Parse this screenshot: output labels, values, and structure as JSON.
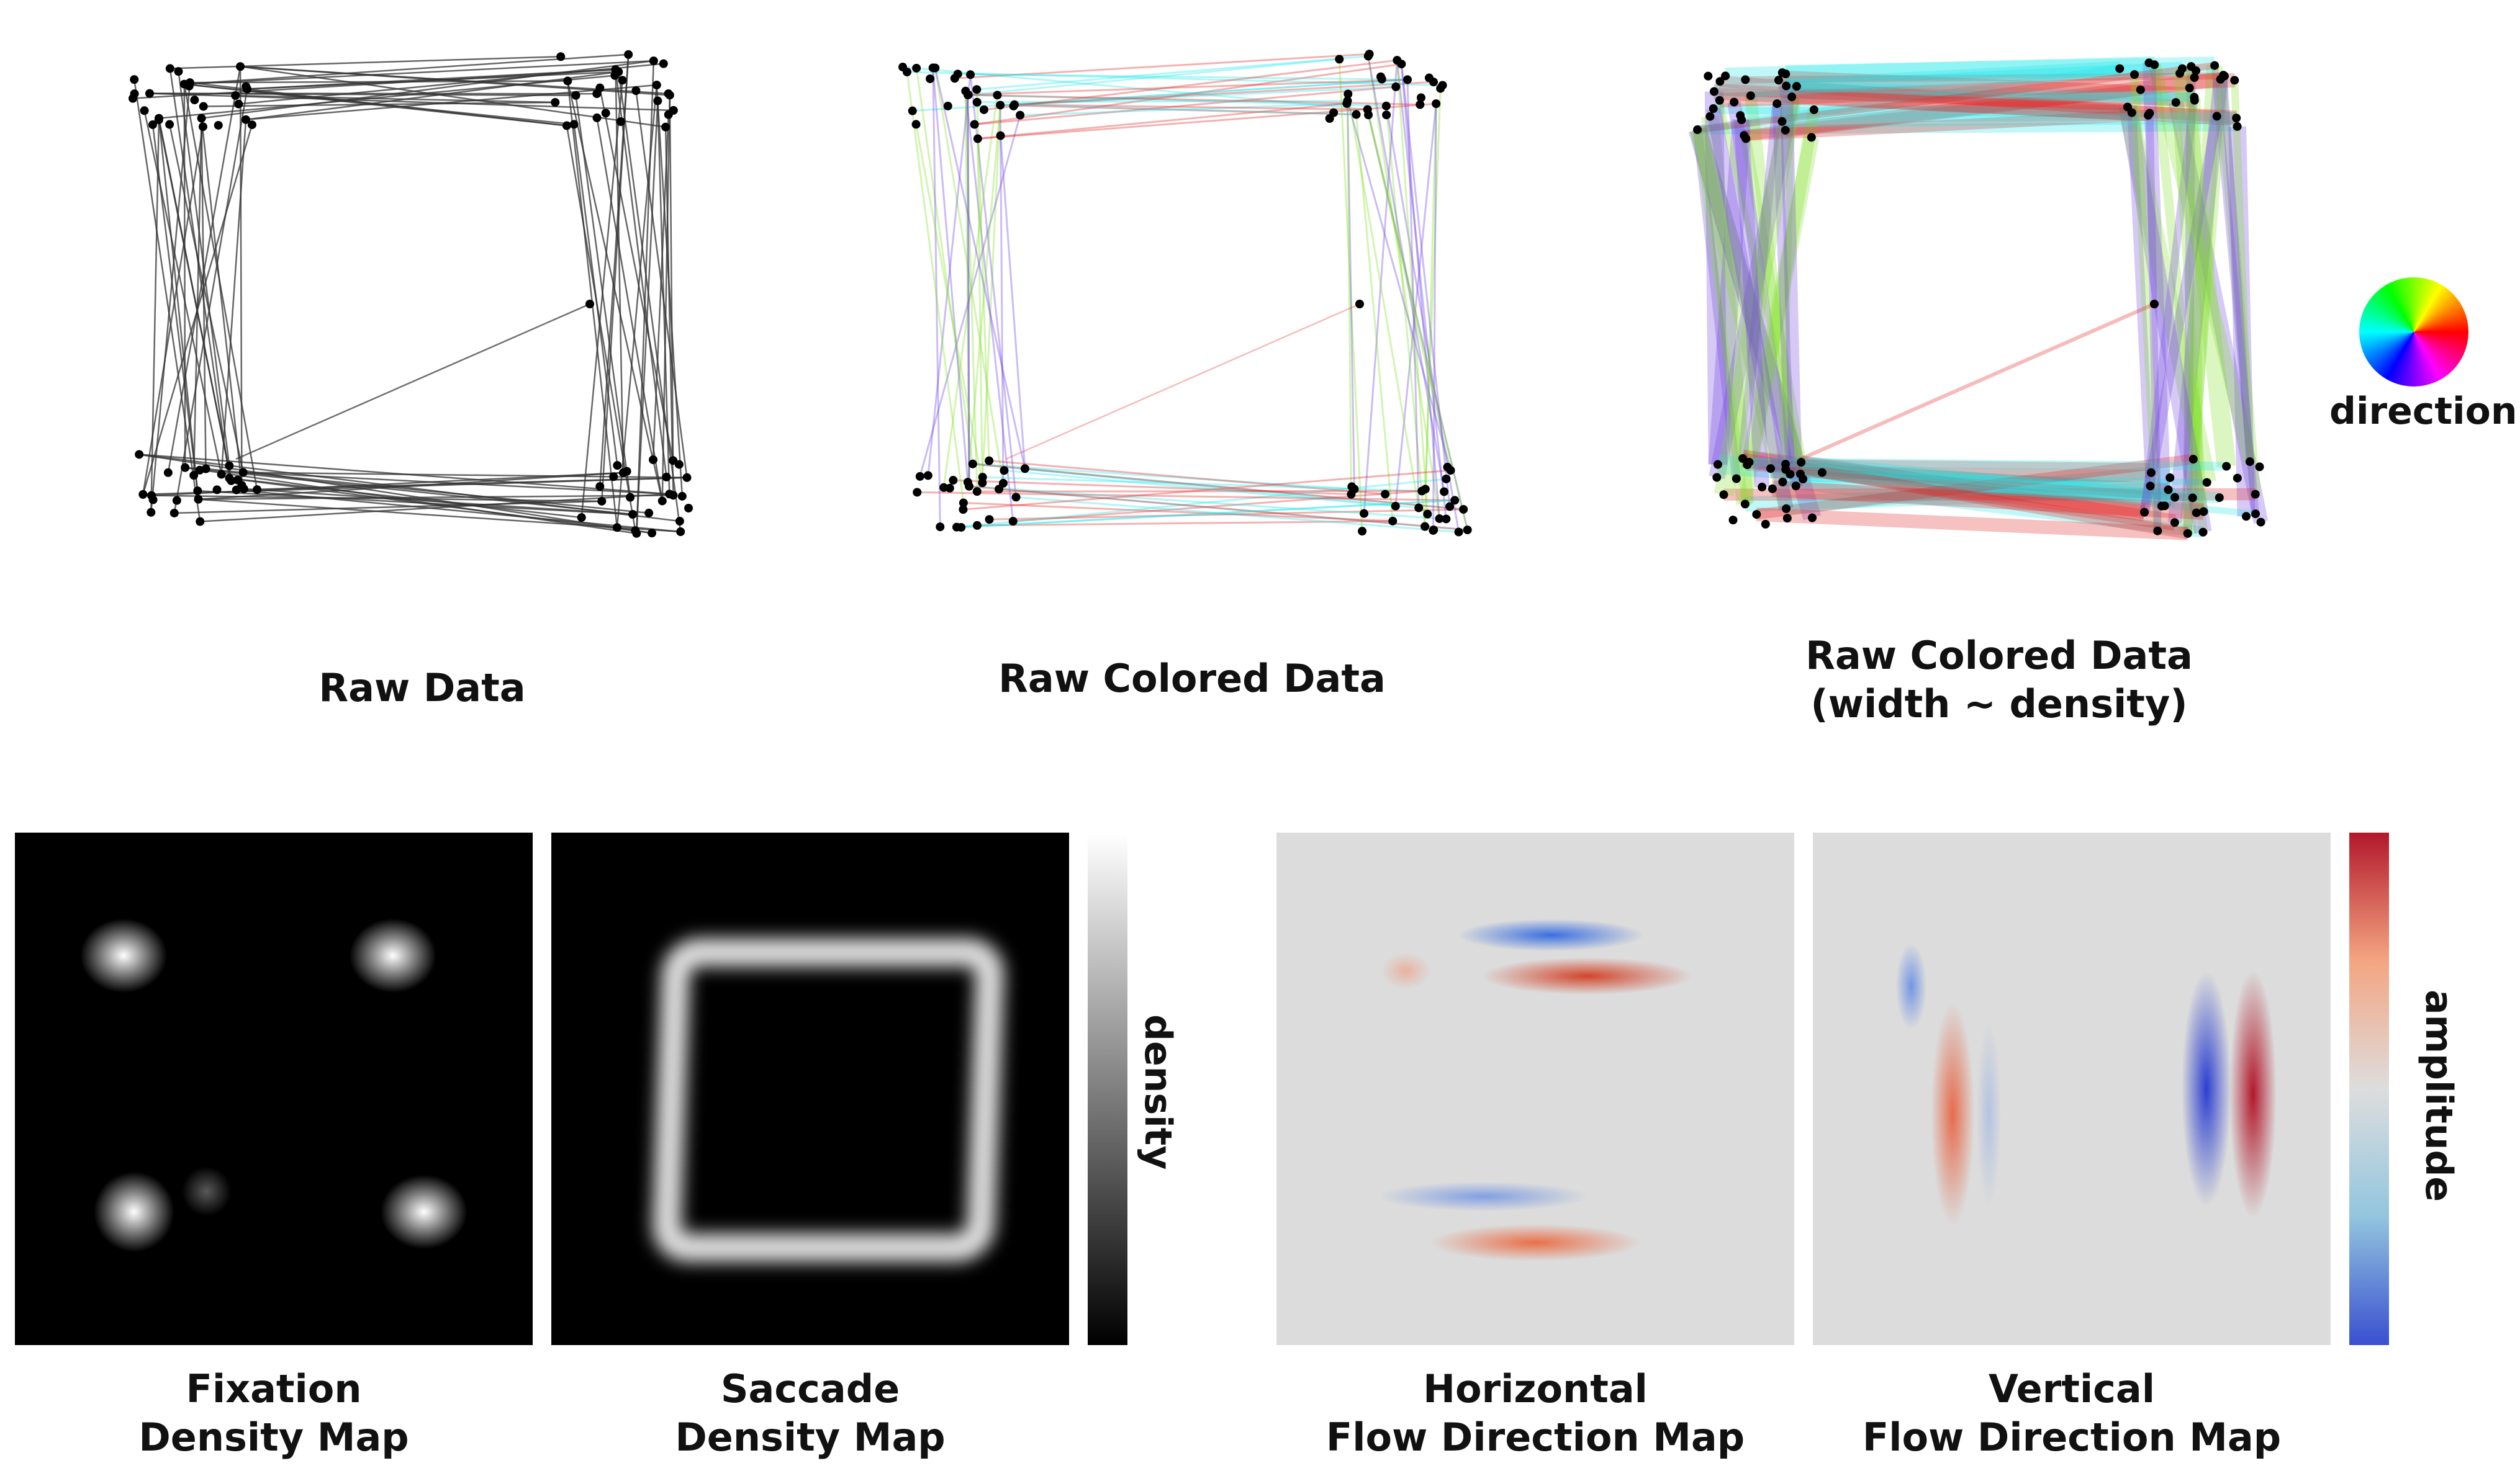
{
  "top_panels": [
    {
      "id": "raw",
      "caption": "Raw Data"
    },
    {
      "id": "raw-colored",
      "caption": "Raw Colored Data"
    },
    {
      "id": "raw-colored-width",
      "caption_line1": "Raw Colored Data",
      "caption_line2": "(width ~ density)"
    }
  ],
  "direction_legend": {
    "label": "direction"
  },
  "bottom_panels": [
    {
      "id": "fixation",
      "caption_line1": "Fixation",
      "caption_line2": "Density Map"
    },
    {
      "id": "saccade",
      "caption_line1": "Saccade",
      "caption_line2": "Density Map"
    },
    {
      "id": "horizontal",
      "caption_line1": "Horizontal",
      "caption_line2": "Flow Direction Map"
    },
    {
      "id": "vertical",
      "caption_line1": "Vertical",
      "caption_line2": "Flow Direction Map"
    }
  ],
  "density_colorbar": {
    "label": "density",
    "colors": [
      "#ffffff",
      "#000000"
    ]
  },
  "amplitude_colorbar": {
    "label": "amplitude",
    "colors": [
      "#b2182b",
      "#f4a582",
      "#dddddd",
      "#92c5de",
      "#3a4fd0"
    ]
  },
  "colors": {
    "red": "#e02020",
    "cyan": "#1de6ea",
    "green": "#7fe020",
    "purple": "#6a3ee0",
    "map_gray": "#dcdcdc",
    "point": "#000000",
    "line": "#333333"
  }
}
